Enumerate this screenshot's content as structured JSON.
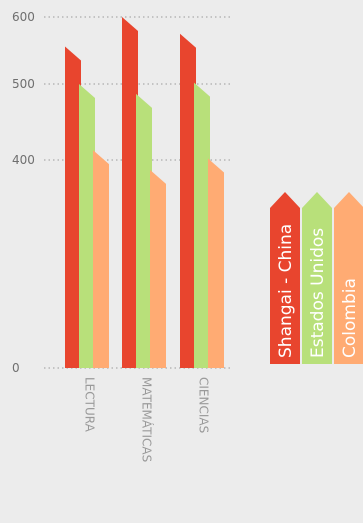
{
  "chart_data": {
    "type": "bar",
    "categories": [
      "LECTURA",
      "MATEMÁTICAS",
      "CIENCIAS"
    ],
    "series": [
      {
        "name": "Shangai - China",
        "values": [
          556,
          600,
          575
        ],
        "color": "#e8452e"
      },
      {
        "name": "Estados Unidos",
        "values": [
          500,
          487,
          502
        ],
        "color": "#b8e07a"
      },
      {
        "name": "Colombia",
        "values": [
          413,
          381,
          402
        ],
        "color": "#ffab73"
      }
    ],
    "y_ticks": [
      "0",
      "400",
      "500",
      "600"
    ],
    "grid": "dotted",
    "legend_position": "right"
  }
}
